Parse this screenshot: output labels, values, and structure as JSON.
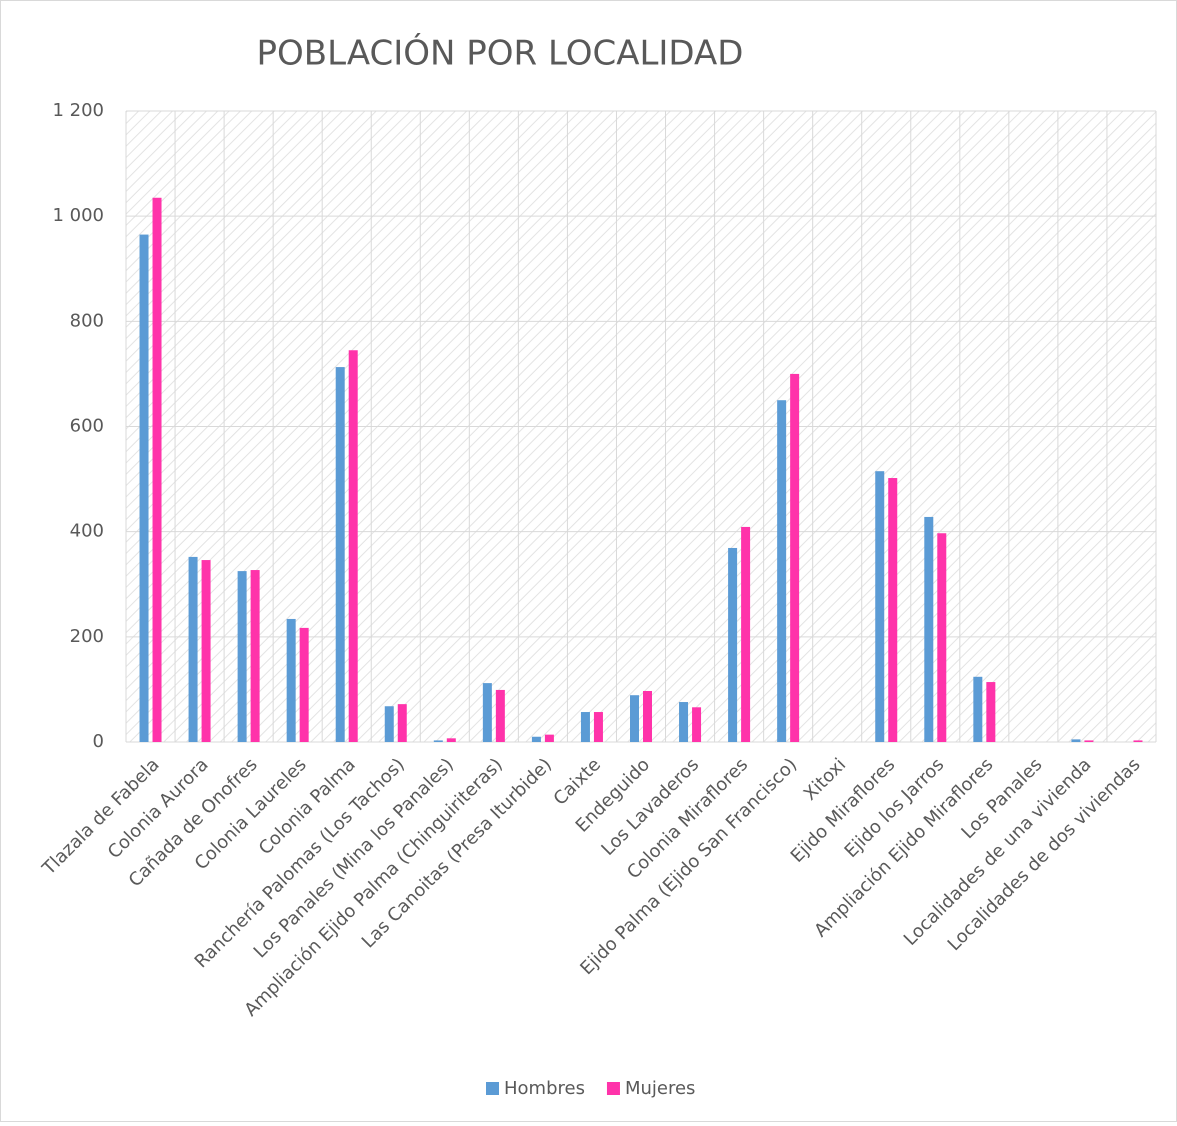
{
  "chart_data": {
    "type": "bar",
    "title": "POBLACIÓN POR LOCALIDAD",
    "categories": [
      "Tlazala de Fabela",
      "Colonia Aurora",
      "Cañada de Onofres",
      "Colonia Laureles",
      "Colonia Palma",
      "Ranchería Palomas (Los Tachos)",
      "Los Panales (Mina los Panales)",
      "Ampliación Ejido Palma (Chinguiriteras)",
      "Las Canoitas (Presa Iturbide)",
      "Caixte",
      "Endeguido",
      "Los Lavaderos",
      "Colonia Miraflores",
      "Ejido Palma (Ejido San Francisco)",
      "Xitoxi",
      "Ejido Miraflores",
      "Ejido los Jarros",
      "Ampliación Ejido Miraflores",
      "Los Panales",
      "Localidades de una vivienda",
      "Localidades de dos viviendas"
    ],
    "series": [
      {
        "name": "Hombres",
        "color": "#5b9bd5",
        "values": [
          965,
          352,
          325,
          234,
          713,
          68,
          3,
          112,
          10,
          57,
          89,
          76,
          369,
          650,
          0,
          515,
          428,
          124,
          0,
          5,
          0
        ]
      },
      {
        "name": "Mujeres",
        "color": "#ff33aa",
        "values": [
          1035,
          346,
          327,
          217,
          745,
          72,
          7,
          99,
          14,
          57,
          97,
          66,
          409,
          700,
          0,
          502,
          397,
          114,
          0,
          3,
          3
        ]
      }
    ],
    "ylim": [
      0,
      1200
    ],
    "yticks": [
      0,
      200,
      400,
      600,
      800,
      {
        "value": 1000,
        "label": "1 000"
      },
      {
        "value": 1200,
        "label": "1 200"
      }
    ],
    "grid": true,
    "legend": "bottom"
  }
}
